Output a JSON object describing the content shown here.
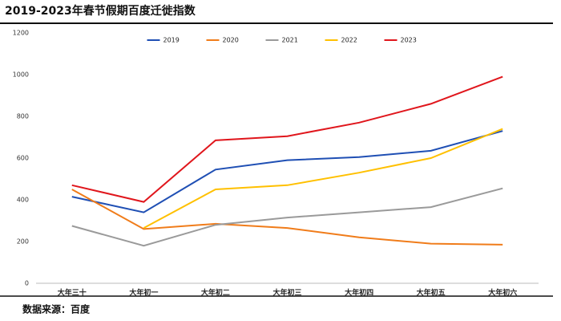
{
  "chart_data": {
    "type": "line",
    "title": "2019-2023年春节假期百度迁徙指数",
    "source": "数据来源：百度",
    "categories": [
      "大年三十",
      "大年初一",
      "大年初二",
      "大年初三",
      "大年初四",
      "大年初五",
      "大年初六"
    ],
    "series": [
      {
        "name": "2019",
        "color": "#1f4fb4",
        "values": [
          415,
          340,
          545,
          590,
          605,
          635,
          730
        ]
      },
      {
        "name": "2020",
        "color": "#f07c1a",
        "values": [
          450,
          260,
          285,
          265,
          220,
          190,
          185
        ]
      },
      {
        "name": "2021",
        "color": "#9a9a9a",
        "values": [
          275,
          180,
          280,
          315,
          340,
          365,
          455
        ]
      },
      {
        "name": "2022",
        "color": "#ffc000",
        "values": [
          null,
          265,
          450,
          470,
          530,
          600,
          740
        ]
      },
      {
        "name": "2023",
        "color": "#e0161c",
        "values": [
          470,
          390,
          685,
          705,
          770,
          860,
          990
        ]
      }
    ],
    "ylim": [
      0,
      1200
    ],
    "yticks": [
      0,
      200,
      400,
      600,
      800,
      1000,
      1200
    ],
    "grid": false,
    "legend": "top"
  }
}
